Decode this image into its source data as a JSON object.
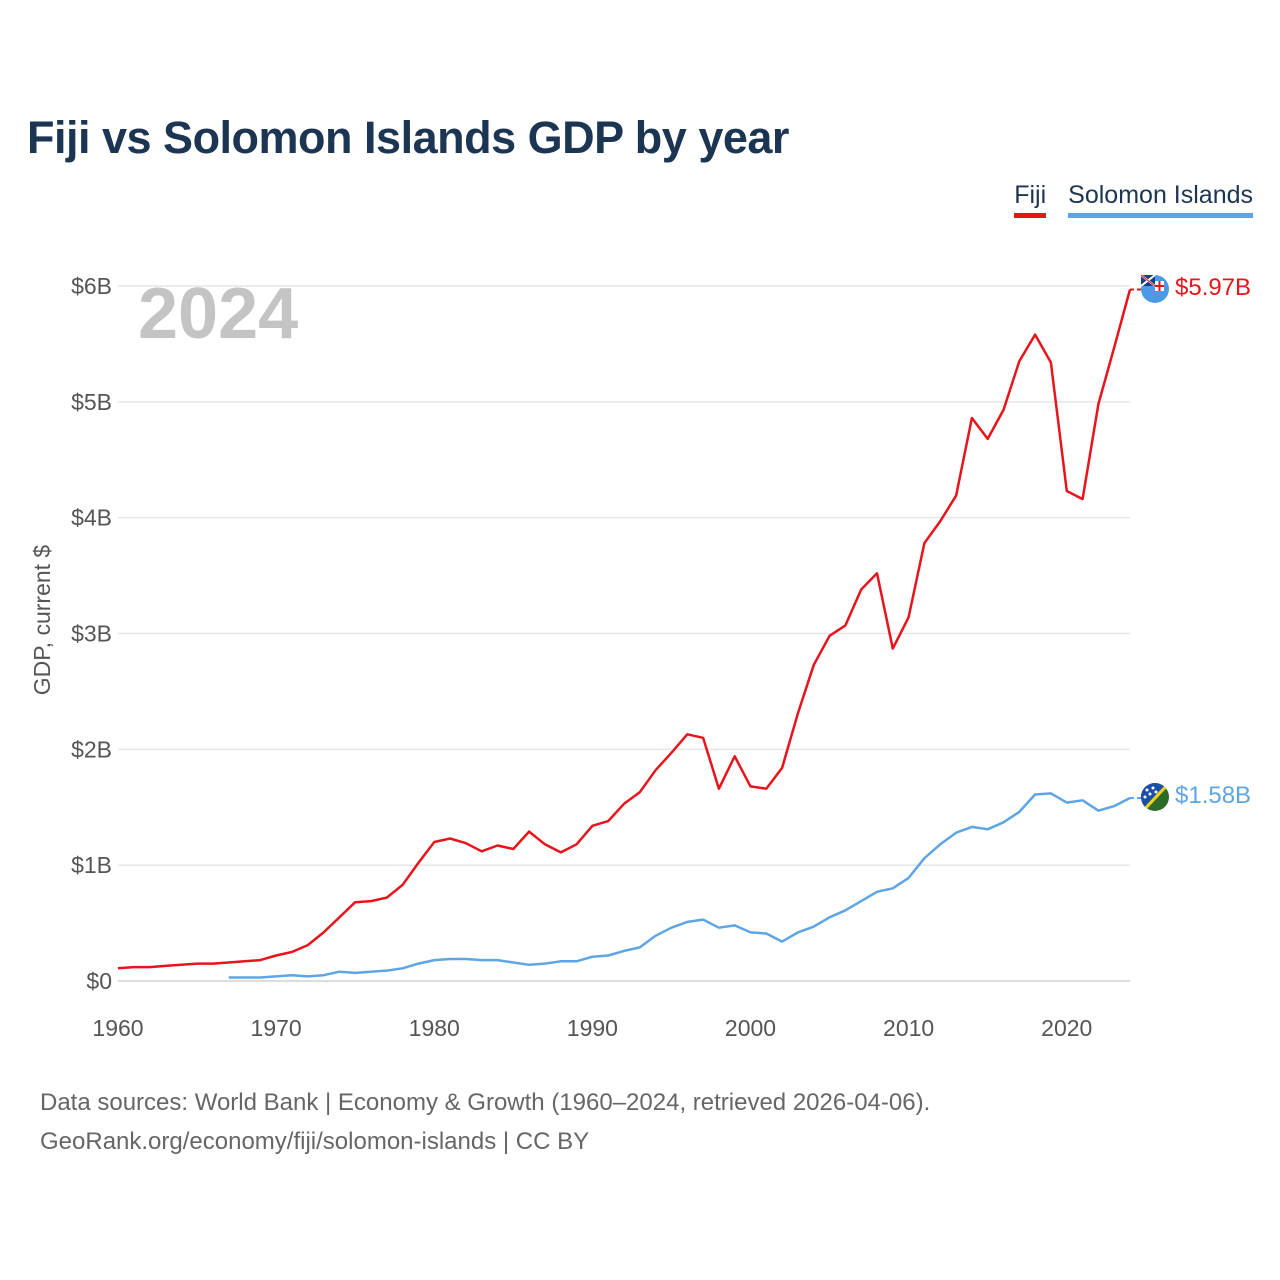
{
  "title": "Fiji vs Solomon Islands GDP by year",
  "legend": {
    "fiji_label": "Fiji",
    "solomon_label": "Solomon Islands"
  },
  "colors": {
    "fiji": "#e8141b",
    "solomon": "#5ea5e5",
    "title": "#1b3553"
  },
  "year_display": "2024",
  "end_labels": {
    "fiji": "$5.97B",
    "solomon": "$1.58B"
  },
  "icons": {
    "fiji_flag": "fiji-flag-icon",
    "solomon_flag": "solomon-islands-flag-icon"
  },
  "footer": {
    "line1": "Data sources: World Bank | Economy & Growth (1960–2024, retrieved 2026-04-06).",
    "line2": "GeoRank.org/economy/fiji/solomon-islands | CC BY"
  },
  "chart_data": {
    "type": "line",
    "title": "Fiji vs Solomon Islands GDP by year",
    "xlabel": "",
    "ylabel": "GDP, current $",
    "xlim": [
      1960,
      2024
    ],
    "ylim": [
      0,
      6
    ],
    "y_unit": "billions USD",
    "x_ticks": [
      1960,
      1970,
      1980,
      1990,
      2000,
      2010,
      2020
    ],
    "y_ticks": [
      {
        "value": 0,
        "label": "$0"
      },
      {
        "value": 1,
        "label": "$1B"
      },
      {
        "value": 2,
        "label": "$2B"
      },
      {
        "value": 3,
        "label": "$3B"
      },
      {
        "value": 4,
        "label": "$4B"
      },
      {
        "value": 5,
        "label": "$5B"
      },
      {
        "value": 6,
        "label": "$6B"
      }
    ],
    "grid": true,
    "legend_position": "top-right",
    "series": [
      {
        "name": "Fiji",
        "x": [
          1960,
          1961,
          1962,
          1963,
          1964,
          1965,
          1966,
          1967,
          1968,
          1969,
          1970,
          1971,
          1972,
          1973,
          1974,
          1975,
          1976,
          1977,
          1978,
          1979,
          1980,
          1981,
          1982,
          1983,
          1984,
          1985,
          1986,
          1987,
          1988,
          1989,
          1990,
          1991,
          1992,
          1993,
          1994,
          1995,
          1996,
          1997,
          1998,
          1999,
          2000,
          2001,
          2002,
          2003,
          2004,
          2005,
          2006,
          2007,
          2008,
          2009,
          2010,
          2011,
          2012,
          2013,
          2014,
          2015,
          2016,
          2017,
          2018,
          2019,
          2020,
          2021,
          2022,
          2023,
          2024
        ],
        "values": [
          0.11,
          0.12,
          0.12,
          0.13,
          0.14,
          0.15,
          0.15,
          0.16,
          0.17,
          0.18,
          0.22,
          0.25,
          0.31,
          0.42,
          0.55,
          0.68,
          0.69,
          0.72,
          0.83,
          1.02,
          1.2,
          1.23,
          1.19,
          1.12,
          1.17,
          1.14,
          1.29,
          1.18,
          1.11,
          1.18,
          1.34,
          1.38,
          1.53,
          1.63,
          1.82,
          1.97,
          2.13,
          2.1,
          1.66,
          1.94,
          1.68,
          1.66,
          1.84,
          2.31,
          2.73,
          2.98,
          3.07,
          3.38,
          3.52,
          2.87,
          3.14,
          3.78,
          3.97,
          4.19,
          4.86,
          4.68,
          4.93,
          5.35,
          5.58,
          5.34,
          4.23,
          4.16,
          4.98,
          5.47,
          5.97
        ]
      },
      {
        "name": "Solomon Islands",
        "x": [
          1967,
          1968,
          1969,
          1970,
          1971,
          1972,
          1973,
          1974,
          1975,
          1976,
          1977,
          1978,
          1979,
          1980,
          1981,
          1982,
          1983,
          1984,
          1985,
          1986,
          1987,
          1988,
          1989,
          1990,
          1991,
          1992,
          1993,
          1994,
          1995,
          1996,
          1997,
          1998,
          1999,
          2000,
          2001,
          2002,
          2003,
          2004,
          2005,
          2006,
          2007,
          2008,
          2009,
          2010,
          2011,
          2012,
          2013,
          2014,
          2015,
          2016,
          2017,
          2018,
          2019,
          2020,
          2021,
          2022,
          2023,
          2024
        ],
        "values": [
          0.03,
          0.03,
          0.03,
          0.04,
          0.05,
          0.04,
          0.05,
          0.08,
          0.07,
          0.08,
          0.09,
          0.11,
          0.15,
          0.18,
          0.19,
          0.19,
          0.18,
          0.18,
          0.16,
          0.14,
          0.15,
          0.17,
          0.17,
          0.21,
          0.22,
          0.26,
          0.29,
          0.39,
          0.46,
          0.51,
          0.53,
          0.46,
          0.48,
          0.42,
          0.41,
          0.34,
          0.42,
          0.47,
          0.55,
          0.61,
          0.69,
          0.77,
          0.8,
          0.89,
          1.06,
          1.18,
          1.28,
          1.33,
          1.31,
          1.37,
          1.46,
          1.61,
          1.62,
          1.54,
          1.56,
          1.47,
          1.51,
          1.58
        ]
      }
    ]
  }
}
